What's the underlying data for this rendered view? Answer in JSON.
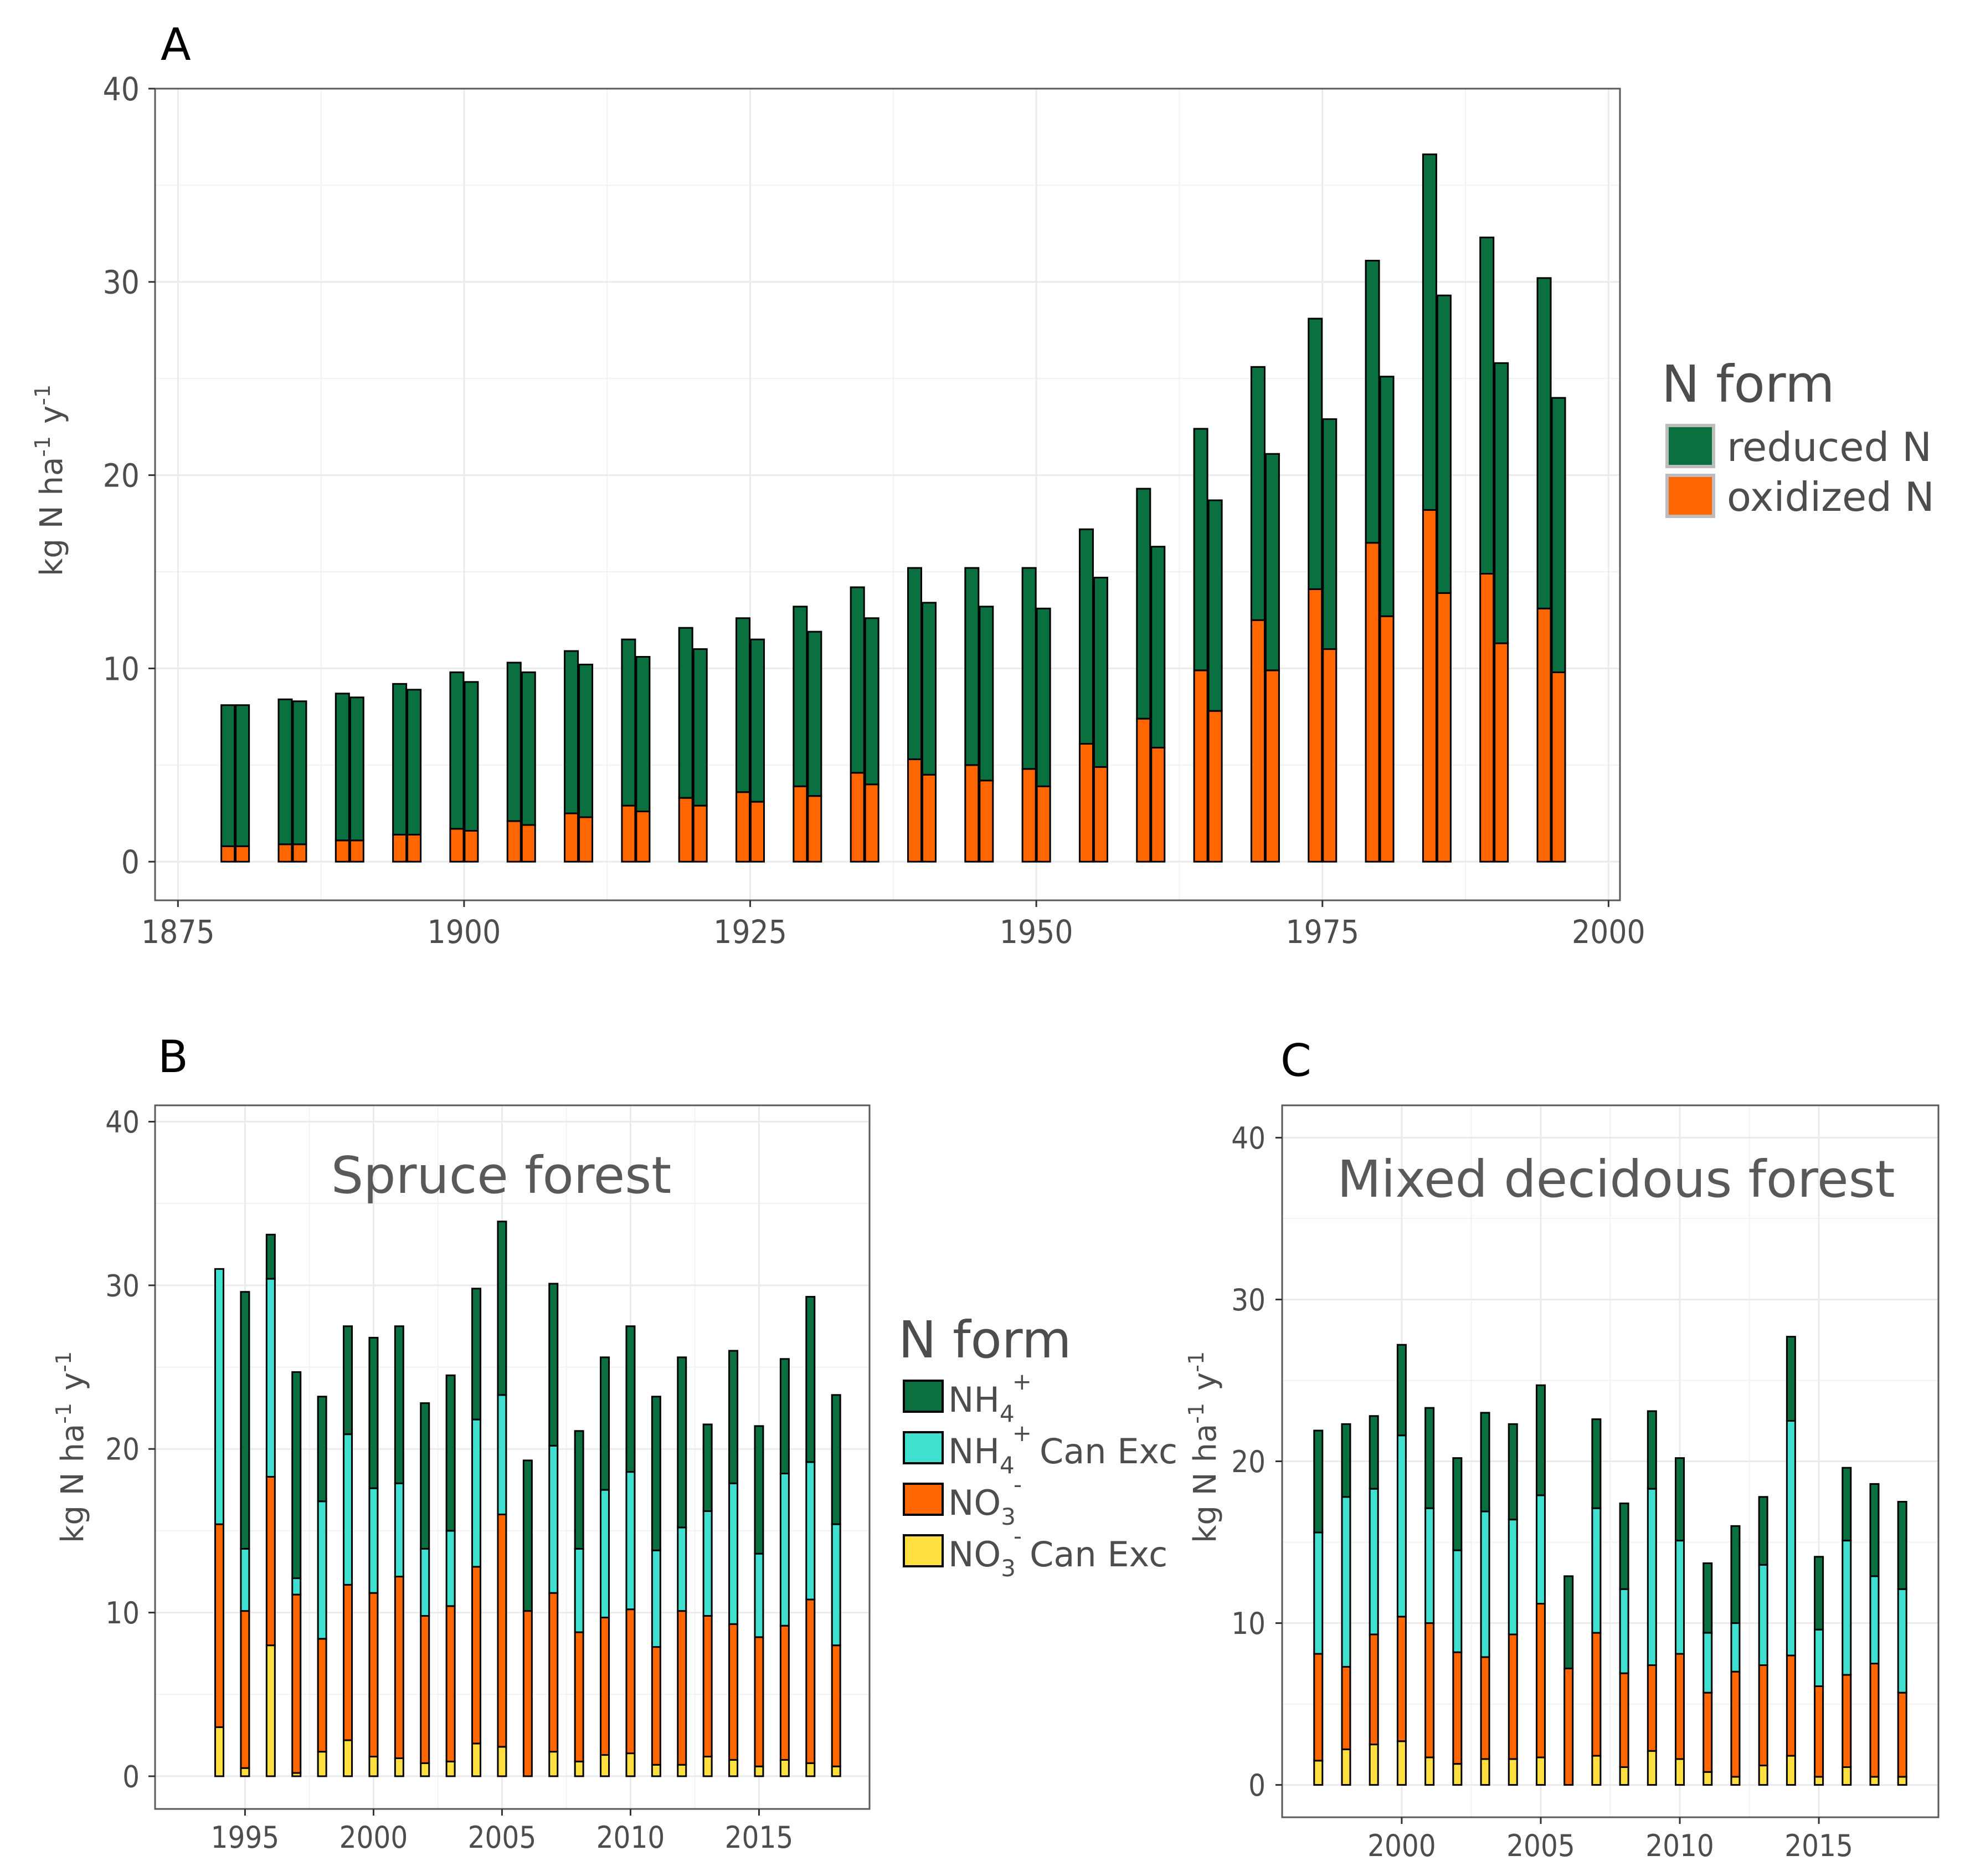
{
  "colors": {
    "reduced": "#0a7040",
    "oxidized": "#ff6600",
    "nh4": "#0a7040",
    "nh4_can_exc": "#40e0d0",
    "no3": "#ff6600",
    "no3_can_exc": "#ffe040",
    "grid": "#ebebeb",
    "panel_border": "#595959"
  },
  "chart_data": [
    {
      "panel": "A",
      "type": "bar",
      "stacking": "stacked",
      "title": "",
      "ylabel": "kg N ha-1 y-1",
      "ylabel_parts": {
        "base": "kg N ha",
        "exp1": "-1",
        "mid": "y",
        "exp2": "-1"
      },
      "xlim": [
        1873,
        2001
      ],
      "ylim": [
        -2,
        40
      ],
      "xticks": [
        1875,
        1900,
        1925,
        1950,
        1975,
        2000
      ],
      "yticks": [
        0,
        10,
        20,
        30,
        40
      ],
      "x": [
        1880,
        1885,
        1890,
        1895,
        1900,
        1905,
        1910,
        1915,
        1920,
        1925,
        1930,
        1935,
        1940,
        1945,
        1950,
        1955,
        1960,
        1965,
        1970,
        1975,
        1980,
        1985,
        1990,
        1995
      ],
      "series_pairs": [
        {
          "name": "left",
          "oxidized": [
            0.8,
            0.9,
            1.1,
            1.4,
            1.7,
            2.1,
            2.5,
            2.9,
            3.3,
            3.6,
            3.9,
            4.6,
            5.3,
            5.0,
            4.8,
            6.1,
            7.4,
            9.9,
            12.5,
            14.1,
            16.5,
            18.2,
            14.9,
            13.1
          ],
          "reduced": [
            7.3,
            7.5,
            7.6,
            7.8,
            8.1,
            8.2,
            8.4,
            8.6,
            8.8,
            9.0,
            9.3,
            9.6,
            9.9,
            10.2,
            10.4,
            11.1,
            11.9,
            12.5,
            13.1,
            14.0,
            14.6,
            18.4,
            17.4,
            17.1
          ]
        },
        {
          "name": "right",
          "oxidized": [
            0.8,
            0.9,
            1.1,
            1.4,
            1.6,
            1.9,
            2.3,
            2.6,
            2.9,
            3.1,
            3.4,
            4.0,
            4.5,
            4.2,
            3.9,
            4.9,
            5.9,
            7.8,
            9.9,
            11.0,
            12.7,
            13.9,
            11.3,
            9.8
          ],
          "reduced": [
            7.3,
            7.4,
            7.4,
            7.5,
            7.7,
            7.9,
            7.9,
            8.0,
            8.1,
            8.4,
            8.5,
            8.6,
            8.9,
            9.0,
            9.2,
            9.8,
            10.4,
            10.9,
            11.2,
            11.9,
            12.4,
            15.4,
            14.5,
            14.2
          ]
        }
      ],
      "legend": {
        "title": "N form",
        "position": "right",
        "entries": [
          "reduced N",
          "oxidized N"
        ]
      }
    },
    {
      "panel": "B",
      "type": "bar",
      "stacking": "stacked",
      "title": "Spruce forest",
      "ylabel": "kg N ha-1 y-1",
      "xlim": [
        1991.5,
        2019.3
      ],
      "ylim": [
        -2,
        41
      ],
      "xticks": [
        1995,
        2000,
        2005,
        2010,
        2015
      ],
      "yticks": [
        0,
        10,
        20,
        30,
        40
      ],
      "x": [
        1994,
        1995,
        1996,
        1997,
        1998,
        1999,
        2000,
        2001,
        2002,
        2003,
        2004,
        2005,
        2006,
        2007,
        2008,
        2009,
        2010,
        2011,
        2012,
        2013,
        2014,
        2015,
        2016,
        2017,
        2018
      ],
      "series": [
        {
          "name": "NO3- Can Exc",
          "values": [
            3.0,
            0.5,
            8.0,
            0.2,
            1.5,
            2.2,
            1.2,
            1.1,
            0.8,
            0.9,
            2.0,
            1.8,
            0.0,
            1.5,
            0.9,
            1.3,
            1.4,
            0.7,
            0.7,
            1.2,
            1.0,
            0.6,
            1.0,
            0.8,
            0.6
          ]
        },
        {
          "name": "NO3-",
          "values": [
            12.4,
            9.6,
            10.3,
            10.9,
            6.9,
            9.5,
            10.0,
            11.1,
            9.0,
            9.5,
            10.8,
            14.2,
            10.1,
            9.7,
            7.9,
            8.4,
            8.8,
            7.2,
            9.4,
            8.6,
            8.3,
            7.9,
            8.2,
            10.0,
            7.4
          ]
        },
        {
          "name": "NH4+ Can Exc",
          "values": [
            15.6,
            3.8,
            12.1,
            1.0,
            8.4,
            9.2,
            6.4,
            5.7,
            4.1,
            4.6,
            9.0,
            7.3,
            0.0,
            9.0,
            5.1,
            7.8,
            8.4,
            5.9,
            5.1,
            6.4,
            8.6,
            5.1,
            9.3,
            8.4,
            7.4
          ]
        },
        {
          "name": "NH4+",
          "values": [
            0.0,
            15.7,
            2.7,
            12.6,
            6.4,
            6.6,
            9.2,
            9.6,
            8.9,
            9.5,
            8.0,
            10.6,
            9.2,
            9.9,
            7.2,
            8.1,
            8.9,
            9.4,
            10.4,
            5.3,
            8.1,
            7.8,
            7.0,
            10.1,
            7.9
          ]
        }
      ]
    },
    {
      "panel": "C",
      "type": "bar",
      "stacking": "stacked",
      "title": "Mixed decidous forest",
      "ylabel": "kg N ha-1 y-1",
      "xlim": [
        1995.7,
        2019.3
      ],
      "ylim": [
        -2,
        42
      ],
      "xticks": [
        2000,
        2005,
        2010,
        2015
      ],
      "yticks": [
        0,
        10,
        20,
        30,
        40
      ],
      "x": [
        1997,
        1998,
        1999,
        2000,
        2001,
        2002,
        2003,
        2004,
        2005,
        2006,
        2007,
        2008,
        2009,
        2010,
        2011,
        2012,
        2013,
        2014,
        2015,
        2016,
        2017,
        2018
      ],
      "series": [
        {
          "name": "NO3- Can Exc",
          "values": [
            1.5,
            2.2,
            2.5,
            2.7,
            1.7,
            1.3,
            1.6,
            1.6,
            1.7,
            0.0,
            1.8,
            1.1,
            2.1,
            1.6,
            0.8,
            0.5,
            1.2,
            1.8,
            0.5,
            1.1,
            0.5,
            0.5
          ]
        },
        {
          "name": "NO3-",
          "values": [
            6.6,
            5.1,
            6.8,
            7.7,
            8.3,
            6.9,
            6.3,
            7.7,
            9.5,
            7.2,
            7.6,
            5.8,
            5.3,
            6.5,
            4.9,
            6.5,
            6.2,
            6.2,
            5.6,
            5.7,
            7.0,
            5.2
          ]
        },
        {
          "name": "NH4+ Can Exc",
          "values": [
            7.5,
            10.5,
            9.0,
            11.2,
            7.1,
            6.3,
            9.0,
            7.1,
            6.7,
            0.0,
            7.7,
            5.2,
            10.9,
            7.0,
            3.7,
            3.0,
            6.2,
            14.5,
            3.5,
            8.3,
            5.4,
            6.4
          ]
        },
        {
          "name": "NH4+",
          "values": [
            6.3,
            4.5,
            4.5,
            5.6,
            6.2,
            5.7,
            6.1,
            5.9,
            6.8,
            5.7,
            5.5,
            5.3,
            4.8,
            5.1,
            4.3,
            6.0,
            4.2,
            5.2,
            4.5,
            4.5,
            5.7,
            5.4
          ]
        }
      ],
      "legend": {
        "title": "N form",
        "position": "left-of-panel",
        "entries": [
          "NH4+",
          "NH4+ Can Exc",
          "NO3-",
          "NO3- Can Exc"
        ]
      }
    }
  ],
  "labels": {
    "panel_a": "A",
    "panel_b": "B",
    "panel_c": "C",
    "legend_a_title": "N form",
    "legend_a_reduced": "reduced N",
    "legend_a_oxidized": "oxidized N",
    "legend_b_title": "N form",
    "legend_b_nh4_base": "NH",
    "legend_b_nh4_sub": "4",
    "legend_b_nh4_sup": "+",
    "legend_b_can_exc": "Can Exc",
    "legend_b_no3_base": "NO",
    "legend_b_no3_sub": "3",
    "legend_b_no3_sup": "-",
    "ylabel_base": "kg N ha",
    "ylabel_exp": "-1",
    "ylabel_y": "y"
  }
}
